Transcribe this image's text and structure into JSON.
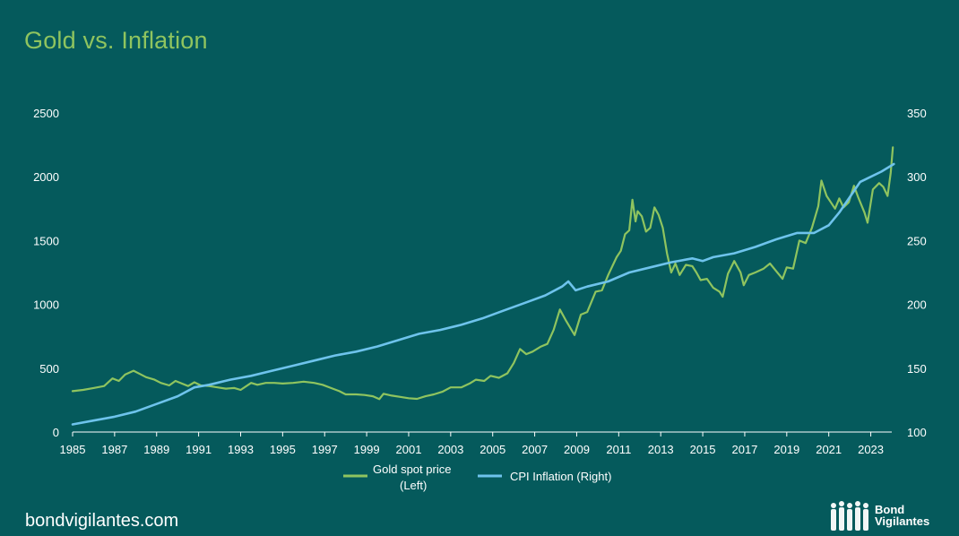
{
  "title": "Gold vs. Inflation",
  "footer": "bondvigilantes.com",
  "logo": {
    "line1": "Bond",
    "line2": "Vigilantes"
  },
  "colors": {
    "background": "#055a5c",
    "gold": "#8fc45f",
    "cpi": "#6ec3ec",
    "title": "#8fc45f"
  },
  "chart_data": {
    "type": "line",
    "xlim": [
      1985,
      2024
    ],
    "x_ticks": [
      "1985",
      "1987",
      "1989",
      "1991",
      "1993",
      "1995",
      "1997",
      "1999",
      "2001",
      "2003",
      "2005",
      "2007",
      "2009",
      "2011",
      "2013",
      "2015",
      "2017",
      "2019",
      "2021",
      "2023"
    ],
    "left_axis": {
      "ticks": [
        "0",
        "500",
        "1000",
        "1500",
        "2000",
        "2500"
      ],
      "range": [
        0,
        2500
      ]
    },
    "right_axis": {
      "ticks": [
        "100",
        "150",
        "200",
        "250",
        "300",
        "350"
      ],
      "range": [
        100,
        350
      ]
    },
    "legend": {
      "position": "bottom",
      "entries": [
        {
          "line1": "Gold spot price",
          "line2": "(Left)"
        },
        {
          "line1": "CPI Inflation (Right)"
        }
      ]
    },
    "series": [
      {
        "name": "Gold spot price (Left)",
        "axis": "left",
        "color": "#8fc45f",
        "points": [
          [
            1985.0,
            320
          ],
          [
            1985.5,
            330
          ],
          [
            1986.0,
            345
          ],
          [
            1986.5,
            360
          ],
          [
            1986.9,
            420
          ],
          [
            1987.2,
            400
          ],
          [
            1987.5,
            450
          ],
          [
            1987.9,
            480
          ],
          [
            1988.2,
            455
          ],
          [
            1988.5,
            430
          ],
          [
            1988.9,
            410
          ],
          [
            1989.2,
            385
          ],
          [
            1989.6,
            365
          ],
          [
            1989.9,
            400
          ],
          [
            1990.2,
            380
          ],
          [
            1990.5,
            360
          ],
          [
            1990.8,
            390
          ],
          [
            1991.1,
            365
          ],
          [
            1991.5,
            360
          ],
          [
            1991.9,
            350
          ],
          [
            1992.3,
            340
          ],
          [
            1992.7,
            345
          ],
          [
            1993.0,
            330
          ],
          [
            1993.5,
            385
          ],
          [
            1993.8,
            370
          ],
          [
            1994.2,
            385
          ],
          [
            1994.6,
            385
          ],
          [
            1995.0,
            380
          ],
          [
            1995.5,
            385
          ],
          [
            1996.0,
            395
          ],
          [
            1996.5,
            385
          ],
          [
            1996.9,
            370
          ],
          [
            1997.3,
            345
          ],
          [
            1997.7,
            320
          ],
          [
            1998.0,
            295
          ],
          [
            1998.5,
            295
          ],
          [
            1998.9,
            290
          ],
          [
            1999.3,
            280
          ],
          [
            1999.6,
            258
          ],
          [
            1999.8,
            300
          ],
          [
            2000.2,
            285
          ],
          [
            2000.6,
            275
          ],
          [
            2001.0,
            265
          ],
          [
            2001.4,
            260
          ],
          [
            2001.8,
            280
          ],
          [
            2002.2,
            295
          ],
          [
            2002.6,
            315
          ],
          [
            2003.0,
            350
          ],
          [
            2003.5,
            350
          ],
          [
            2003.9,
            380
          ],
          [
            2004.2,
            410
          ],
          [
            2004.6,
            400
          ],
          [
            2004.9,
            440
          ],
          [
            2005.3,
            425
          ],
          [
            2005.7,
            460
          ],
          [
            2006.0,
            540
          ],
          [
            2006.3,
            650
          ],
          [
            2006.6,
            610
          ],
          [
            2006.9,
            630
          ],
          [
            2007.3,
            670
          ],
          [
            2007.6,
            690
          ],
          [
            2007.9,
            800
          ],
          [
            2008.2,
            960
          ],
          [
            2008.5,
            870
          ],
          [
            2008.9,
            760
          ],
          [
            2009.2,
            920
          ],
          [
            2009.5,
            940
          ],
          [
            2009.9,
            1100
          ],
          [
            2010.2,
            1110
          ],
          [
            2010.5,
            1230
          ],
          [
            2010.9,
            1370
          ],
          [
            2011.1,
            1420
          ],
          [
            2011.3,
            1550
          ],
          [
            2011.5,
            1580
          ],
          [
            2011.65,
            1820
          ],
          [
            2011.8,
            1650
          ],
          [
            2011.9,
            1730
          ],
          [
            2012.1,
            1690
          ],
          [
            2012.3,
            1570
          ],
          [
            2012.5,
            1600
          ],
          [
            2012.7,
            1760
          ],
          [
            2012.9,
            1700
          ],
          [
            2013.1,
            1600
          ],
          [
            2013.3,
            1400
          ],
          [
            2013.5,
            1250
          ],
          [
            2013.7,
            1320
          ],
          [
            2013.9,
            1230
          ],
          [
            2014.2,
            1310
          ],
          [
            2014.5,
            1300
          ],
          [
            2014.7,
            1250
          ],
          [
            2014.9,
            1190
          ],
          [
            2015.2,
            1200
          ],
          [
            2015.5,
            1130
          ],
          [
            2015.8,
            1100
          ],
          [
            2015.95,
            1060
          ],
          [
            2016.2,
            1240
          ],
          [
            2016.5,
            1340
          ],
          [
            2016.8,
            1250
          ],
          [
            2016.95,
            1150
          ],
          [
            2017.2,
            1230
          ],
          [
            2017.5,
            1250
          ],
          [
            2017.9,
            1280
          ],
          [
            2018.2,
            1320
          ],
          [
            2018.5,
            1260
          ],
          [
            2018.8,
            1200
          ],
          [
            2019.0,
            1290
          ],
          [
            2019.3,
            1280
          ],
          [
            2019.6,
            1500
          ],
          [
            2019.9,
            1480
          ],
          [
            2020.2,
            1600
          ],
          [
            2020.5,
            1770
          ],
          [
            2020.65,
            1970
          ],
          [
            2020.9,
            1850
          ],
          [
            2021.1,
            1800
          ],
          [
            2021.3,
            1750
          ],
          [
            2021.5,
            1830
          ],
          [
            2021.7,
            1760
          ],
          [
            2021.95,
            1800
          ],
          [
            2022.2,
            1930
          ],
          [
            2022.4,
            1840
          ],
          [
            2022.7,
            1720
          ],
          [
            2022.85,
            1640
          ],
          [
            2023.1,
            1900
          ],
          [
            2023.4,
            1950
          ],
          [
            2023.6,
            1920
          ],
          [
            2023.8,
            1850
          ],
          [
            2023.95,
            2030
          ],
          [
            2024.05,
            2230
          ]
        ]
      },
      {
        "name": "CPI Inflation (Right)",
        "axis": "right",
        "color": "#6ec3ec",
        "points": [
          [
            1985.0,
            106
          ],
          [
            1986.0,
            109
          ],
          [
            1987.0,
            112
          ],
          [
            1988.0,
            116
          ],
          [
            1989.0,
            122
          ],
          [
            1990.0,
            128
          ],
          [
            1990.8,
            135
          ],
          [
            1991.5,
            137
          ],
          [
            1992.5,
            141
          ],
          [
            1993.5,
            144
          ],
          [
            1994.5,
            148
          ],
          [
            1995.5,
            152
          ],
          [
            1996.5,
            156
          ],
          [
            1997.5,
            160
          ],
          [
            1998.5,
            163
          ],
          [
            1999.5,
            167
          ],
          [
            2000.5,
            172
          ],
          [
            2001.5,
            177
          ],
          [
            2002.5,
            180
          ],
          [
            2003.5,
            184
          ],
          [
            2004.5,
            189
          ],
          [
            2005.5,
            195
          ],
          [
            2006.5,
            201
          ],
          [
            2007.5,
            207
          ],
          [
            2008.3,
            214
          ],
          [
            2008.6,
            218
          ],
          [
            2008.95,
            211
          ],
          [
            2009.5,
            214
          ],
          [
            2010.5,
            218
          ],
          [
            2011.5,
            225
          ],
          [
            2012.5,
            229
          ],
          [
            2013.5,
            233
          ],
          [
            2014.5,
            236
          ],
          [
            2015.0,
            234
          ],
          [
            2015.5,
            237
          ],
          [
            2016.5,
            240
          ],
          [
            2017.5,
            245
          ],
          [
            2018.5,
            251
          ],
          [
            2019.5,
            256
          ],
          [
            2020.3,
            256
          ],
          [
            2021.0,
            262
          ],
          [
            2021.5,
            272
          ],
          [
            2022.0,
            284
          ],
          [
            2022.5,
            296
          ],
          [
            2023.0,
            300
          ],
          [
            2023.5,
            304
          ],
          [
            2024.1,
            310
          ]
        ]
      }
    ]
  }
}
